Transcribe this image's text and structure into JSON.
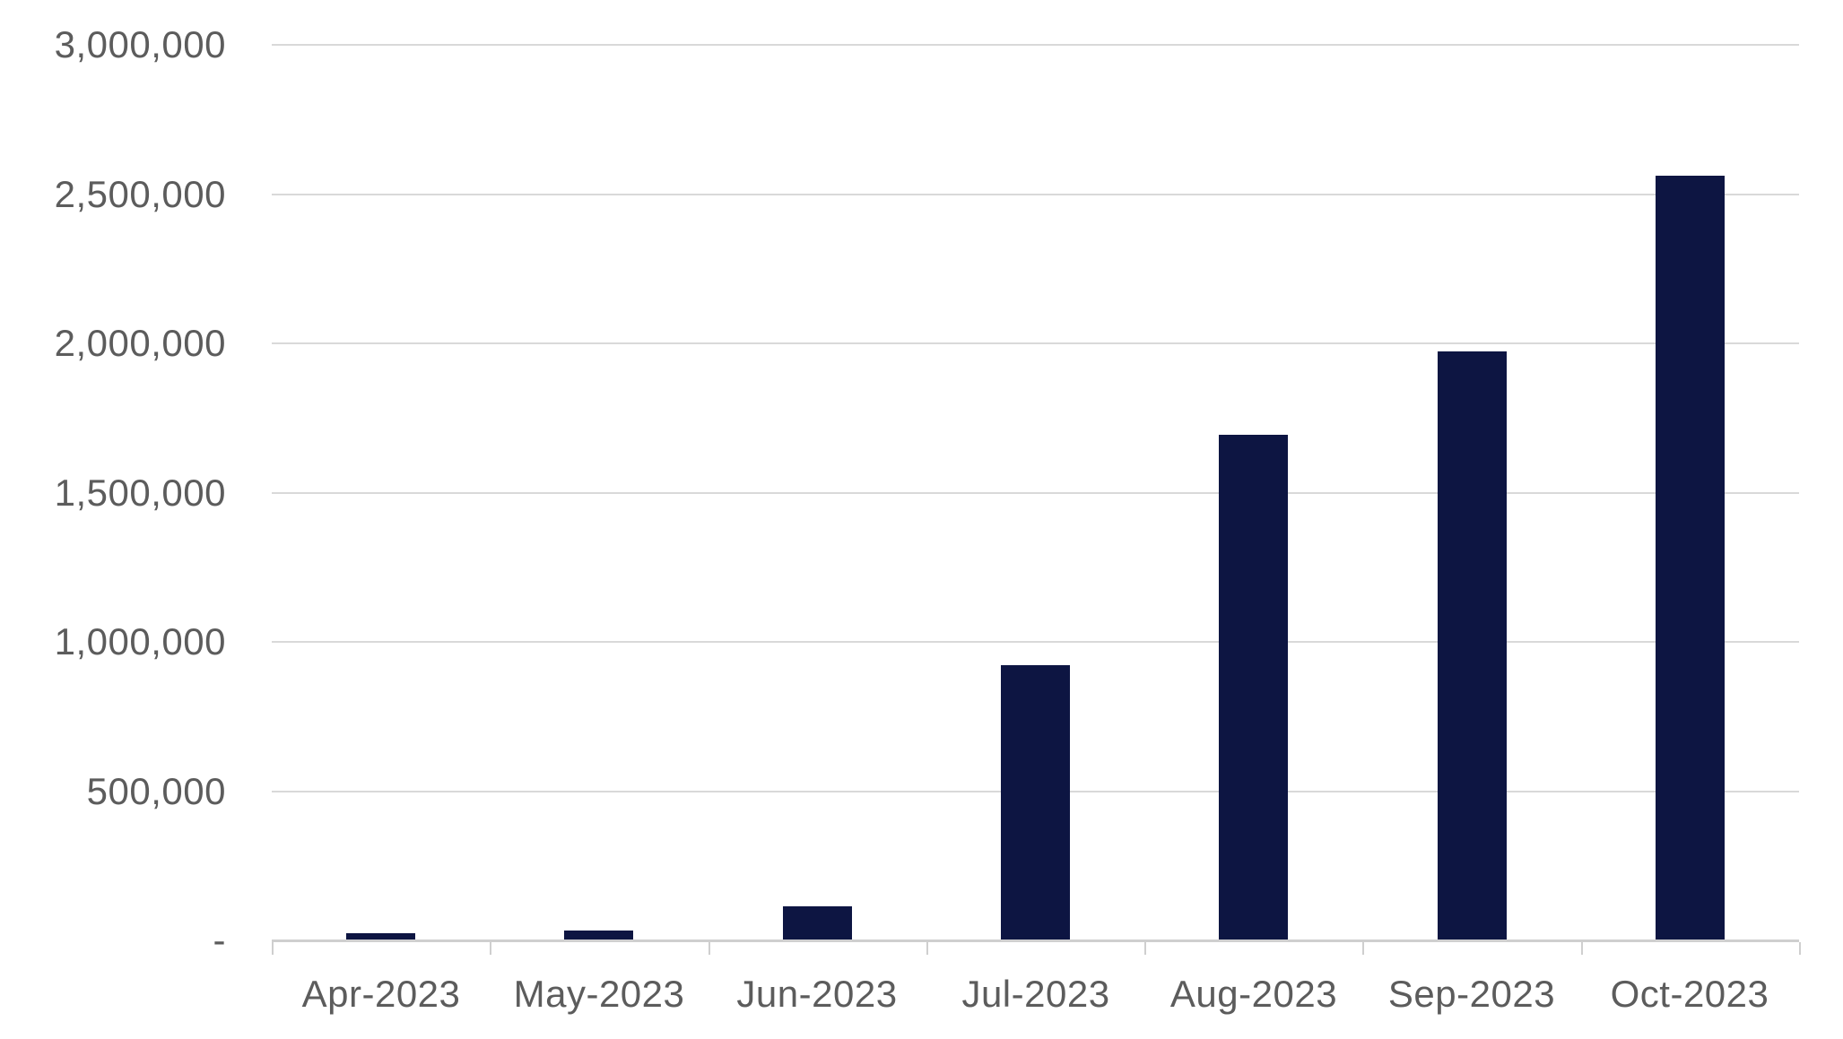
{
  "chart_data": {
    "type": "bar",
    "categories": [
      "Apr-2023",
      "May-2023",
      "Jun-2023",
      "Jul-2023",
      "Aug-2023",
      "Sep-2023",
      "Oct-2023"
    ],
    "values": [
      20000,
      30000,
      110000,
      920000,
      1690000,
      1970000,
      2560000
    ],
    "ylim": [
      0,
      3000000
    ],
    "y_tick_interval": 500000,
    "y_tick_labels": [
      "3,000,000",
      "2,500,000",
      "2,000,000",
      "1,500,000",
      "1,000,000",
      "500,000",
      "-"
    ],
    "grid": "horizontal-only",
    "legend": "none",
    "colors": {
      "bar_fill": "#0d1542",
      "gridline": "#d9d9d9",
      "axis_line": "#cfcfcf",
      "tick_mark": "#cfcfcf",
      "label_text": "#5c5c5c",
      "background": "#ffffff"
    }
  }
}
